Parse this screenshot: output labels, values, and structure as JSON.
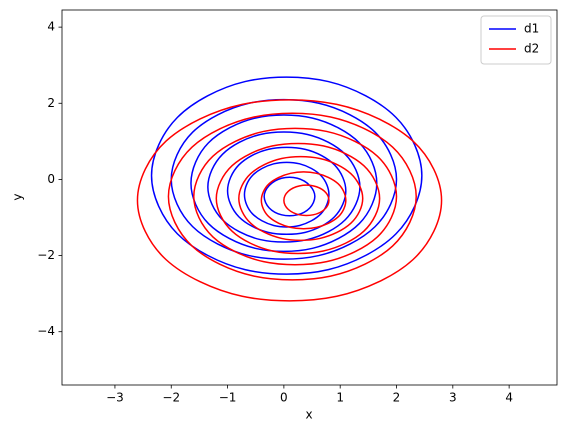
{
  "chart_data": {
    "type": "kde",
    "xlabel": "x",
    "ylabel": "y",
    "xlim": [
      -3.94,
      4.85
    ],
    "ylim": [
      -5.4,
      4.45
    ],
    "xticks": [
      {
        "value": -3,
        "label": "−3"
      },
      {
        "value": -2,
        "label": "−2"
      },
      {
        "value": -1,
        "label": "−1"
      },
      0,
      1,
      2,
      3,
      4
    ],
    "yticks": [
      {
        "value": -4,
        "label": "−4"
      },
      {
        "value": -2,
        "label": "−2"
      },
      0,
      2,
      4
    ],
    "legend": "upper right",
    "series": [
      {
        "name": "d1",
        "color": "#0000ff",
        "contours": [
          {
            "x": [
              2.45,
              1.99,
              0.79,
              -0.69,
              -1.89,
              -2.35,
              -1.89,
              -0.69,
              0.79,
              1.99
            ],
            "y": [
              0.1,
              1.63,
              2.57,
              2.57,
              1.63,
              0.1,
              -1.43,
              -2.37,
              -2.37,
              -1.43
            ]
          },
          {
            "x": [
              2.0,
              1.62,
              0.62,
              -0.62,
              -1.62,
              -2.0,
              -1.62,
              -0.62,
              0.62,
              1.62
            ],
            "y": [
              0,
              1.24,
              2.0,
              2.0,
              1.24,
              0,
              -1.24,
              -2.0,
              -2.0,
              -1.24
            ]
          },
          {
            "x": [
              1.65,
              1.34,
              0.51,
              -0.51,
              -1.34,
              -1.65,
              -1.34,
              -0.51,
              0.51,
              1.34
            ],
            "y": [
              -0.1,
              0.96,
              1.61,
              1.61,
              0.96,
              -0.1,
              -1.16,
              -1.81,
              -1.81,
              -1.16
            ]
          },
          {
            "x": [
              1.35,
              1.09,
              0.42,
              -0.42,
              -1.09,
              -1.35,
              -1.09,
              -0.42,
              0.42,
              1.09
            ],
            "y": [
              -0.2,
              0.66,
              1.18,
              1.18,
              0.66,
              -0.2,
              -1.06,
              -1.58,
              -1.58,
              -1.06
            ]
          },
          {
            "x": [
              1.1,
              0.9,
              0.38,
              -0.28,
              -0.8,
              -1.0,
              -0.8,
              -0.28,
              0.38,
              0.9
            ],
            "y": [
              -0.3,
              0.38,
              0.79,
              0.79,
              0.38,
              -0.3,
              -0.98,
              -1.39,
              -1.39,
              -0.98
            ]
          },
          {
            "x": [
              0.8,
              0.66,
              0.28,
              -0.18,
              -0.56,
              -0.7,
              -0.56,
              -0.18,
              0.28,
              0.66
            ],
            "y": [
              -0.4,
              0.1,
              0.41,
              0.41,
              0.1,
              -0.4,
              -0.9,
              -1.21,
              -1.21,
              -0.9
            ]
          },
          {
            "x": [
              0.55,
              0.46,
              0.24,
              -0.04,
              -0.26,
              -0.35,
              -0.26,
              -0.04,
              0.24,
              0.46
            ],
            "y": [
              -0.45,
              -0.16,
              0.03,
              0.03,
              -0.16,
              -0.45,
              -0.75,
              -0.93,
              -0.93,
              -0.75
            ]
          }
        ]
      },
      {
        "name": "d2",
        "color": "#ff0000",
        "contours": [
          {
            "x": [
              2.8,
              2.29,
              0.94,
              -0.74,
              -2.09,
              -2.6,
              -2.09,
              -0.74,
              0.94,
              2.29
            ],
            "y": [
              -0.55,
              1.01,
              1.97,
              1.97,
              1.01,
              -0.55,
              -2.11,
              -3.07,
              -3.07,
              -2.11
            ]
          },
          {
            "x": [
              2.35,
              1.93,
              0.83,
              -0.53,
              -1.63,
              -2.05,
              -1.63,
              -0.53,
              0.83,
              1.93
            ],
            "y": [
              -0.45,
              0.85,
              1.64,
              1.64,
              0.85,
              -0.45,
              -1.75,
              -2.54,
              -2.54,
              -1.75
            ]
          },
          {
            "x": [
              2.0,
              1.66,
              0.76,
              -0.36,
              -1.26,
              -1.6,
              -1.26,
              -0.36,
              0.76,
              1.66
            ],
            "y": [
              -0.45,
              0.61,
              1.26,
              1.26,
              0.61,
              -0.45,
              -1.51,
              -2.16,
              -2.16,
              -1.51
            ]
          },
          {
            "x": [
              1.7,
              1.42,
              0.7,
              -0.2,
              -0.92,
              -1.2,
              -0.92,
              -0.2,
              0.7,
              1.42
            ],
            "y": [
              -0.5,
              0.36,
              0.88,
              0.88,
              0.36,
              -0.5,
              -1.36,
              -1.88,
              -1.88,
              -1.36
            ]
          },
          {
            "x": [
              1.4,
              1.19,
              0.64,
              -0.04,
              -0.59,
              -0.8,
              -0.59,
              -0.04,
              0.64,
              1.19
            ],
            "y": [
              -0.5,
              0.15,
              0.55,
              0.55,
              0.15,
              -0.5,
              -1.15,
              -1.55,
              -1.55,
              -1.15
            ]
          },
          {
            "x": [
              1.1,
              0.96,
              0.58,
              0.12,
              -0.26,
              -0.4,
              -0.26,
              0.12,
              0.58,
              0.96
            ],
            "y": [
              -0.55,
              -0.11,
              0.16,
              0.16,
              -0.11,
              -0.55,
              -0.99,
              -1.26,
              -1.26,
              -0.99
            ]
          },
          {
            "x": [
              0.8,
              0.72,
              0.52,
              0.28,
              0.08,
              0,
              0.08,
              0.28,
              0.52,
              0.72
            ],
            "y": [
              -0.55,
              -0.31,
              -0.17,
              -0.17,
              -0.31,
              -0.55,
              -0.79,
              -0.93,
              -0.93,
              -0.79
            ]
          }
        ]
      }
    ]
  }
}
